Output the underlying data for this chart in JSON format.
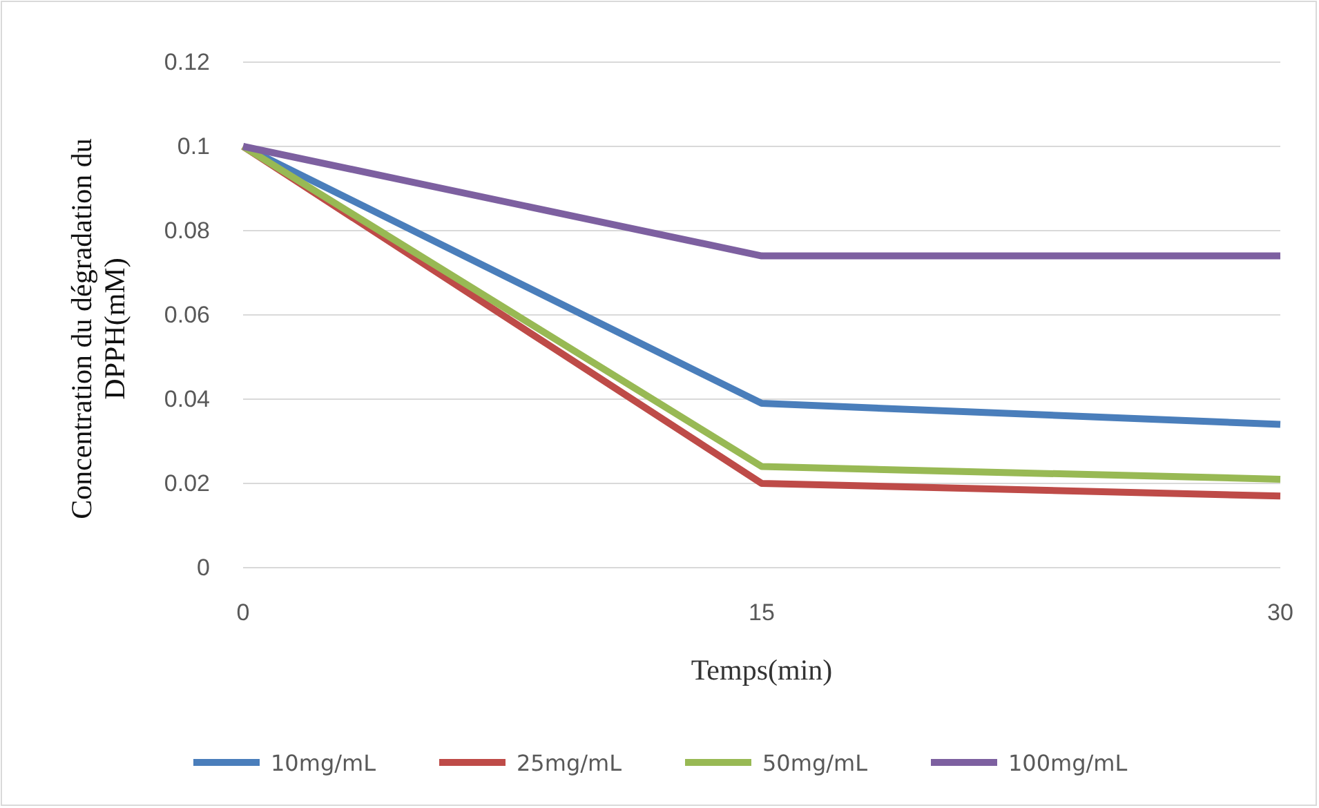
{
  "chart_data": {
    "type": "line",
    "xlabel": "Temps(min)",
    "ylabel": "Concentration du dégradation du DPPH(mM)",
    "categories": [
      "0",
      "15",
      "30"
    ],
    "series": [
      {
        "name": "10mg/mL",
        "color": "#4a7ebb",
        "values": [
          0.1,
          0.039,
          0.034
        ]
      },
      {
        "name": "25mg/mL",
        "color": "#be4b48",
        "values": [
          0.1,
          0.02,
          0.017
        ]
      },
      {
        "name": "50mg/mL",
        "color": "#98b954",
        "values": [
          0.1,
          0.024,
          0.021
        ]
      },
      {
        "name": "100mg/mL",
        "color": "#7d60a0",
        "values": [
          0.1,
          0.074,
          0.074
        ]
      }
    ],
    "ylim": [
      0,
      0.12
    ],
    "yticks": [
      0,
      0.02,
      0.04,
      0.06,
      0.08,
      {
        "value": 0.1,
        "label": "0.1"
      },
      0.12
    ],
    "grid": "y",
    "legend": "bottom",
    "marker": "none",
    "line_style": "solid"
  }
}
